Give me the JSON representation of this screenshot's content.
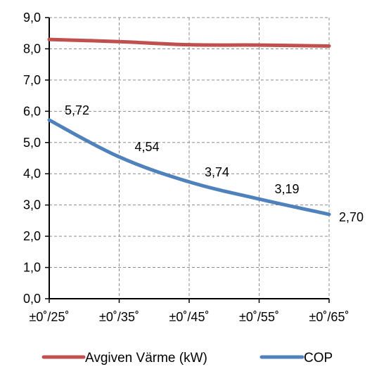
{
  "chart_data": {
    "type": "line",
    "x": [
      "±0˚/25˚",
      "±0˚/35˚",
      "±0˚/45˚",
      "±0˚/55˚",
      "±0˚/65˚"
    ],
    "ylim": [
      0,
      9
    ],
    "yticks": [
      "0,0",
      "1,0",
      "2,0",
      "3,0",
      "4,0",
      "5,0",
      "6,0",
      "7,0",
      "8,0",
      "9,0"
    ],
    "grid": "dashed",
    "legend_position": "bottom",
    "series": [
      {
        "name": "Avgiven Värme (kW)",
        "color": "#c0504d",
        "values": [
          8.3,
          8.23,
          8.13,
          8.12,
          8.09
        ],
        "labels": [
          "",
          "",
          "",
          "",
          ""
        ]
      },
      {
        "name": "COP",
        "color": "#4f81bd",
        "values": [
          5.72,
          4.54,
          3.74,
          3.19,
          2.7
        ],
        "labels": [
          "5,72",
          "4,54",
          "3,74",
          "3,19",
          "2,70"
        ]
      }
    ]
  }
}
